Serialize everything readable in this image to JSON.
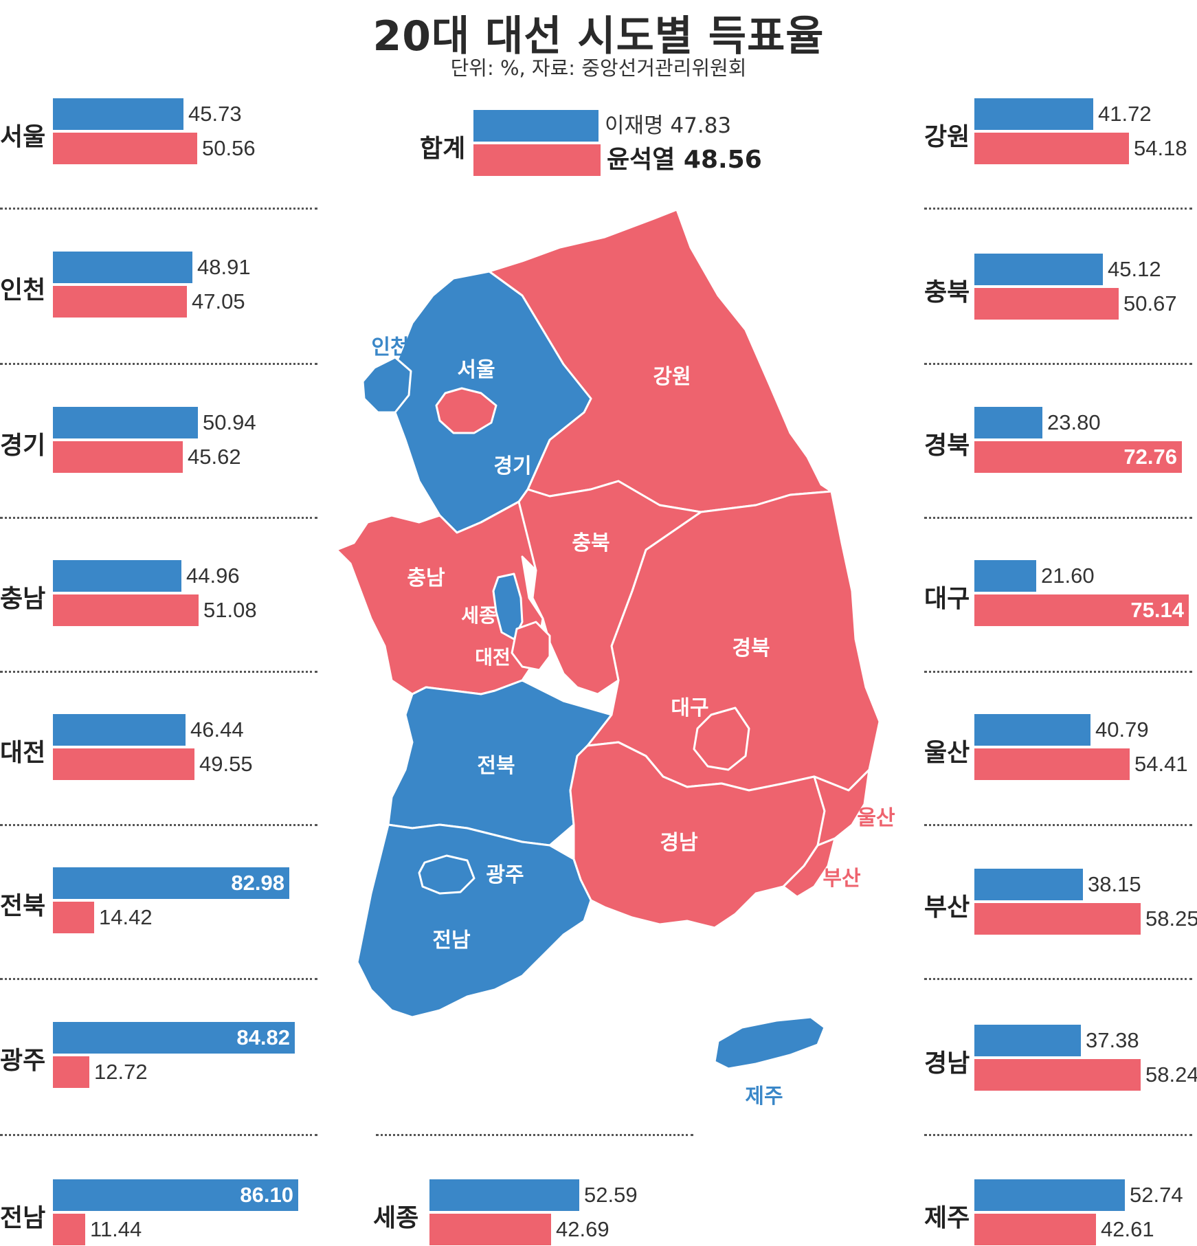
{
  "header": {
    "title": "20대 대선 시도별 득표율",
    "subtitle": "단위: %, 자료: 중앙선거관리위원회"
  },
  "colors": {
    "lee": "#3a87c8",
    "yoon": "#ee636e"
  },
  "total": {
    "label": "합계",
    "lee_name": "이재명",
    "lee_value": "47.83",
    "yoon_name": "윤석열",
    "yoon_value": "48.56"
  },
  "chart_data": {
    "type": "bar",
    "orientation": "horizontal",
    "series": [
      {
        "name": "이재명",
        "color": "#3a87c8"
      },
      {
        "name": "윤석열",
        "color": "#ee636e"
      }
    ],
    "regions": [
      {
        "name": "서울",
        "lee": 45.73,
        "yoon": 50.56
      },
      {
        "name": "인천",
        "lee": 48.91,
        "yoon": 47.05
      },
      {
        "name": "경기",
        "lee": 50.94,
        "yoon": 45.62
      },
      {
        "name": "충남",
        "lee": 44.96,
        "yoon": 51.08
      },
      {
        "name": "대전",
        "lee": 46.44,
        "yoon": 49.55
      },
      {
        "name": "전북",
        "lee": 82.98,
        "yoon": 14.42
      },
      {
        "name": "광주",
        "lee": 84.82,
        "yoon": 12.72
      },
      {
        "name": "전남",
        "lee": 86.1,
        "yoon": 11.44
      },
      {
        "name": "강원",
        "lee": 41.72,
        "yoon": 54.18
      },
      {
        "name": "충북",
        "lee": 45.12,
        "yoon": 50.67
      },
      {
        "name": "경북",
        "lee": 23.8,
        "yoon": 72.76
      },
      {
        "name": "대구",
        "lee": 21.6,
        "yoon": 75.14
      },
      {
        "name": "울산",
        "lee": 40.79,
        "yoon": 54.41
      },
      {
        "name": "부산",
        "lee": 38.15,
        "yoon": 58.25
      },
      {
        "name": "경남",
        "lee": 37.38,
        "yoon": 58.24
      },
      {
        "name": "제주",
        "lee": 52.74,
        "yoon": 42.61
      },
      {
        "name": "세종",
        "lee": 52.59,
        "yoon": 42.69
      }
    ]
  },
  "map_labels": [
    {
      "name": "인천",
      "winner": "lee"
    },
    {
      "name": "서울",
      "winner": "yoon"
    },
    {
      "name": "경기",
      "winner": "lee"
    },
    {
      "name": "강원",
      "winner": "yoon"
    },
    {
      "name": "충북",
      "winner": "yoon"
    },
    {
      "name": "충남",
      "winner": "yoon"
    },
    {
      "name": "세종",
      "winner": "lee"
    },
    {
      "name": "대전",
      "winner": "yoon"
    },
    {
      "name": "경북",
      "winner": "yoon"
    },
    {
      "name": "대구",
      "winner": "yoon"
    },
    {
      "name": "전북",
      "winner": "lee"
    },
    {
      "name": "울산",
      "winner": "yoon"
    },
    {
      "name": "경남",
      "winner": "yoon"
    },
    {
      "name": "광주",
      "winner": "lee"
    },
    {
      "name": "부산",
      "winner": "yoon"
    },
    {
      "name": "전남",
      "winner": "lee"
    },
    {
      "name": "제주",
      "winner": "lee"
    }
  ]
}
